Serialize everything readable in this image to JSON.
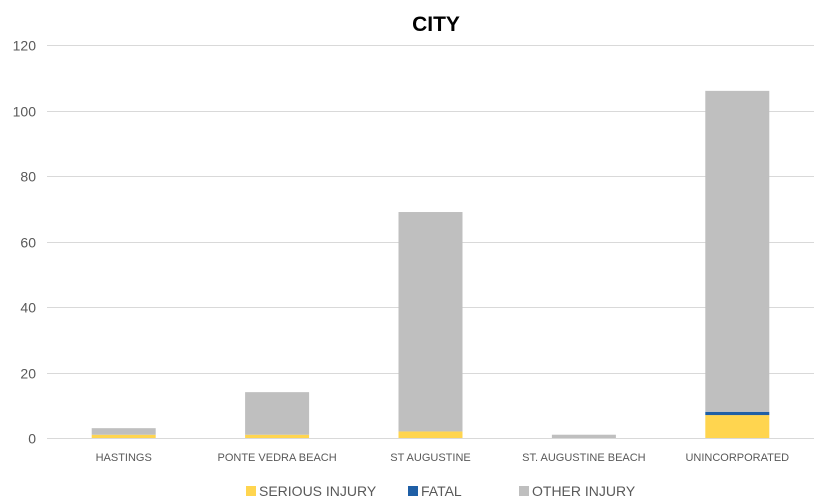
{
  "chart_data": {
    "type": "bar",
    "stacked": true,
    "title": "CITY",
    "xlabel": "",
    "ylabel": "",
    "ylim": [
      0,
      120
    ],
    "yticks": [
      0,
      20,
      40,
      60,
      80,
      100,
      120
    ],
    "grid": true,
    "legend_position": "bottom",
    "categories": [
      "HASTINGS",
      "PONTE VEDRA BEACH",
      "ST AUGUSTINE",
      "ST. AUGUSTINE BEACH",
      "UNINCORPORATED"
    ],
    "series": [
      {
        "name": "SERIOUS INJURY",
        "color": "#ffd54f",
        "values": [
          1,
          1,
          2,
          0,
          7
        ]
      },
      {
        "name": "FATAL",
        "color": "#1f5fa6",
        "values": [
          0,
          0,
          0,
          0,
          1
        ]
      },
      {
        "name": "OTHER INJURY",
        "color": "#bfbfbf",
        "values": [
          2,
          13,
          67,
          1,
          98
        ]
      }
    ]
  }
}
